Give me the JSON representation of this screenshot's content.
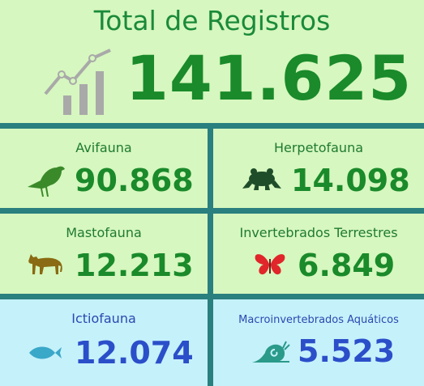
{
  "total": {
    "title": "Total de Registros",
    "value": "141.625",
    "icon": "trend-chart-icon"
  },
  "cards": [
    {
      "label": "Avifauna",
      "value": "90.868",
      "icon": "bird-icon",
      "color": "#3a8a2a"
    },
    {
      "label": "Herpetofauna",
      "value": "14.098",
      "icon": "frog-icon",
      "color": "#1f4d2a"
    },
    {
      "label": "Mastofauna",
      "value": "12.213",
      "icon": "feline-icon",
      "color": "#8a6a12"
    },
    {
      "label": "Invertebrados Terrestres",
      "value": "6.849",
      "icon": "butterfly-icon",
      "color": "#e0262a"
    },
    {
      "label": "Ictiofauna",
      "value": "12.074",
      "icon": "fish-icon",
      "color": "#3aa8c8"
    },
    {
      "label": "Macroinvertebrados Aquáticos",
      "value": "5.523",
      "icon": "snail-icon",
      "color": "#2a9a8a"
    }
  ],
  "colors": {
    "background": "#2a7f7f",
    "green_card": "#d6f7bf",
    "blue_card": "#c5f1fb",
    "green_text": "#1a8a2a",
    "blue_text": "#2b4fc9"
  }
}
